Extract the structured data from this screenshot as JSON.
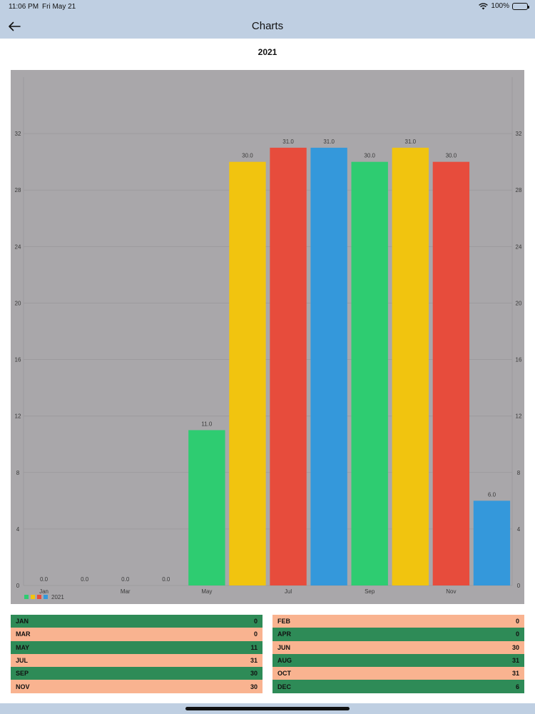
{
  "status": {
    "time": "11:06 PM",
    "date": "Fri May 21",
    "battery": "100%",
    "battery_level": 1.0
  },
  "nav": {
    "title": "Charts",
    "back_icon": "arrow-left-icon"
  },
  "chart_data": {
    "type": "bar",
    "title": "2021",
    "categories": [
      "Jan",
      "Feb",
      "Mar",
      "Apr",
      "May",
      "Jun",
      "Jul",
      "Aug",
      "Sep",
      "Oct",
      "Nov",
      "Dec"
    ],
    "x_tick_labels": [
      "Jan",
      "Mar",
      "May",
      "Jul",
      "Sep",
      "Nov"
    ],
    "series": [
      {
        "name": "2021",
        "values": [
          0,
          0,
          0,
          0,
          11,
          30,
          31,
          31,
          30,
          31,
          30,
          6
        ]
      }
    ],
    "value_labels": [
      "0.0",
      "0.0",
      "0.0",
      "0.0",
      "11.0",
      "30.0",
      "31.0",
      "31.0",
      "30.0",
      "31.0",
      "30.0",
      "6.0"
    ],
    "bar_colors": [
      "#2ecc71",
      "#f1c40f",
      "#e74c3c",
      "#3498db"
    ],
    "ylim": [
      0,
      36
    ],
    "y_ticks": [
      0,
      4,
      8,
      12,
      16,
      20,
      24,
      28,
      32
    ],
    "right_axis": true,
    "grid": true,
    "legend": {
      "position": "bottom-left",
      "label": "2021"
    },
    "colors": {
      "background": "#a9a7aa",
      "grid": "#9a989b",
      "text": "#3a3a3a"
    }
  },
  "table": {
    "left": [
      {
        "month": "JAN",
        "value": "0"
      },
      {
        "month": "MAR",
        "value": "0"
      },
      {
        "month": "MAY",
        "value": "11"
      },
      {
        "month": "JUL",
        "value": "31"
      },
      {
        "month": "SEP",
        "value": "30"
      },
      {
        "month": "NOV",
        "value": "30"
      }
    ],
    "right": [
      {
        "month": "FEB",
        "value": "0"
      },
      {
        "month": "APR",
        "value": "0"
      },
      {
        "month": "JUN",
        "value": "30"
      },
      {
        "month": "AUG",
        "value": "31"
      },
      {
        "month": "OCT",
        "value": "31"
      },
      {
        "month": "DEC",
        "value": "6"
      }
    ],
    "colors": {
      "green": "#2e8b57",
      "peach": "#f9b390"
    }
  }
}
